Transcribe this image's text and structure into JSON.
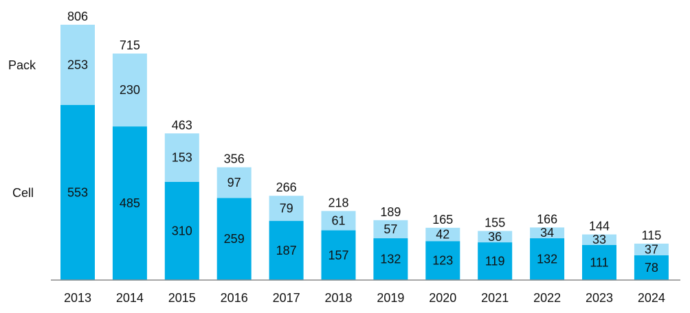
{
  "chart_data": {
    "type": "bar",
    "stacked": true,
    "categories": [
      "2013",
      "2014",
      "2015",
      "2016",
      "2017",
      "2018",
      "2019",
      "2020",
      "2021",
      "2022",
      "2023",
      "2024"
    ],
    "series": [
      {
        "name": "Cell",
        "values": [
          553,
          485,
          310,
          259,
          187,
          157,
          132,
          123,
          119,
          132,
          111,
          78
        ],
        "color": "#00aee6"
      },
      {
        "name": "Pack",
        "values": [
          253,
          230,
          153,
          97,
          79,
          61,
          57,
          42,
          36,
          34,
          33,
          37
        ],
        "color": "#a3dff8"
      }
    ],
    "totals": [
      806,
      715,
      463,
      356,
      266,
      218,
      189,
      165,
      155,
      166,
      144,
      115
    ],
    "ylim": [
      0,
      806
    ],
    "grid": false,
    "legend": "left, series labels aligned with first bar segments",
    "title": "",
    "xlabel": "",
    "ylabel": ""
  }
}
